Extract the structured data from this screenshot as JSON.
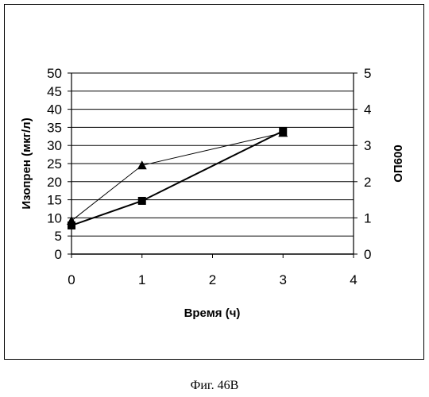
{
  "chart_data": {
    "type": "line",
    "xlabel": "Время (ч)",
    "ylabel": "Изопрен (мкг/л)",
    "y2label": "ОП600",
    "xlim": [
      0,
      4
    ],
    "ylim": [
      0,
      50
    ],
    "y2lim": [
      0,
      5
    ],
    "x_ticks": [
      0,
      1,
      2,
      3,
      4
    ],
    "y_ticks": [
      0,
      5,
      10,
      15,
      20,
      25,
      30,
      35,
      40,
      45,
      50
    ],
    "y2_ticks": [
      0,
      1,
      2,
      3,
      4,
      5
    ],
    "grid": "horizontal",
    "series": [
      {
        "marker": "square",
        "axis": "left",
        "color": "#000000",
        "points": [
          {
            "x": 0,
            "y": 7.9
          },
          {
            "x": 1,
            "y": 14.7
          },
          {
            "x": 3,
            "y": 34.0
          }
        ]
      },
      {
        "marker": "triangle",
        "axis": "right",
        "color": "#000000",
        "points": [
          {
            "x": 0,
            "y": 0.92
          },
          {
            "x": 1,
            "y": 2.45
          },
          {
            "x": 3,
            "y": 3.35
          }
        ]
      }
    ]
  },
  "caption": "Фиг. 46B"
}
